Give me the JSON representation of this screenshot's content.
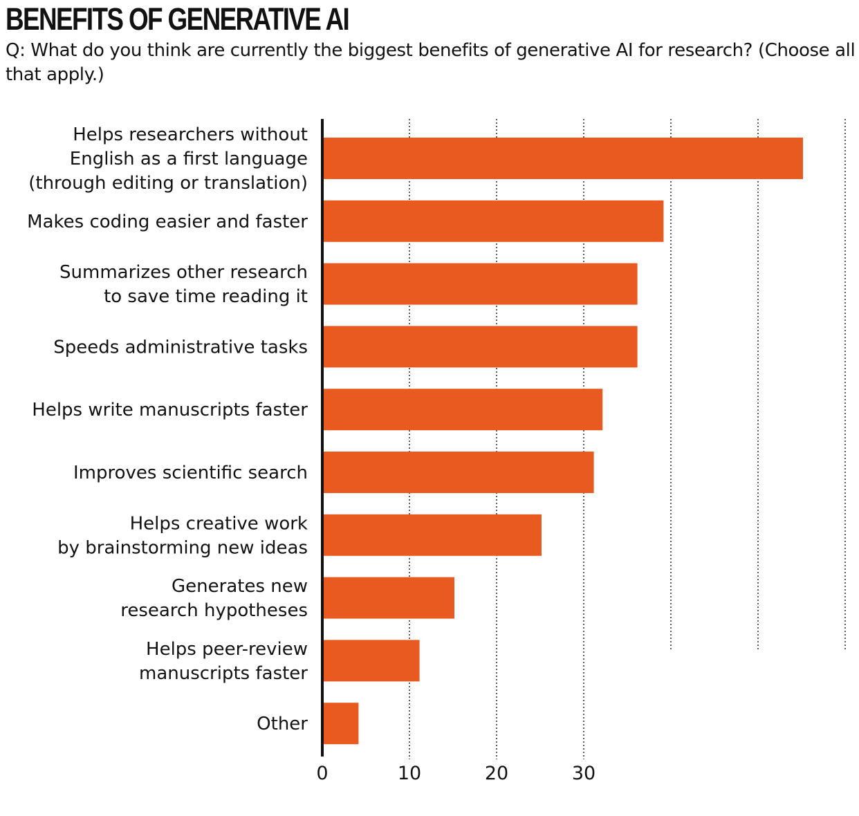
{
  "title": "BENEFITS OF GENERATIVE AI",
  "subtitle": "Q: What do you think are currently the biggest benefits of generative AI for research? (Choose all that apply.)",
  "colors": {
    "bar": "#e85a1f",
    "axis": "#111111",
    "grid": "#333333",
    "text": "#111111"
  },
  "chart_data": {
    "type": "bar",
    "orientation": "horizontal",
    "title": "BENEFITS OF GENERATIVE AI",
    "xlabel": "",
    "ylabel": "",
    "xlim": [
      0,
      60
    ],
    "ticks": [
      0,
      10,
      20,
      30
    ],
    "grid_values": [
      10,
      20,
      30,
      40,
      50,
      60
    ],
    "grid": true,
    "categories": [
      [
        "Helps researchers without",
        "English as a first language",
        "(through editing or translation)"
      ],
      [
        "Makes coding easier and faster"
      ],
      [
        "Summarizes other research",
        "to save time reading it"
      ],
      [
        "Speeds administrative tasks"
      ],
      [
        "Helps write manuscripts faster"
      ],
      [
        "Improves scientific search"
      ],
      [
        "Helps creative work",
        "by brainstorming new ideas"
      ],
      [
        "Generates new",
        "research hypotheses"
      ],
      [
        "Helps peer-review",
        "manuscripts faster"
      ],
      [
        "Other"
      ]
    ],
    "values": [
      55,
      39,
      36,
      36,
      32,
      31,
      25,
      15,
      11,
      4
    ]
  }
}
